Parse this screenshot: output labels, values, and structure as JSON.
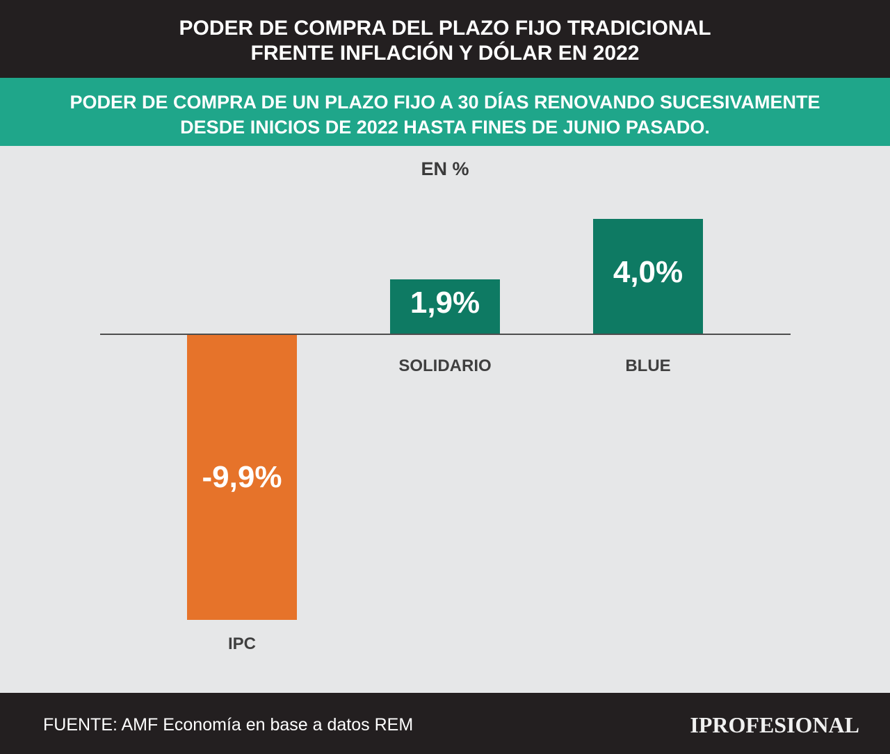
{
  "chart_data": {
    "type": "bar",
    "title_lines": [
      "PODER DE COMPRA DEL PLAZO FIJO TRADICIONAL",
      "FRENTE INFLACIÓN Y DÓLAR EN 2022"
    ],
    "subtitle_lines": [
      "PODER DE COMPRA DE UN PLAZO FIJO A 30 DÍAS RENOVANDO SUCESIVAMENTE",
      "DESDE INICIOS DE 2022 HASTA FINES DE JUNIO PASADO."
    ],
    "unit_label": "EN %",
    "categories": [
      "IPC",
      "SOLIDARIO",
      "BLUE"
    ],
    "values": [
      -9.9,
      1.9,
      4.0
    ],
    "value_labels": [
      "-9,9%",
      "1,9%",
      "4,0%"
    ],
    "bar_colors": [
      "#e6732a",
      "#0e7a63",
      "#0e7a63"
    ],
    "ylim": [
      -9.9,
      4.0
    ],
    "grid": false
  },
  "footer": {
    "source": "FUENTE: AMF Economía en base a datos REM",
    "logo_text": "IPROFESIONAL"
  },
  "colors": {
    "header_bg": "#231f20",
    "subheader_bg": "#1fa68a",
    "body_bg": "#e6e7e8",
    "footer_bg": "#231f20"
  }
}
